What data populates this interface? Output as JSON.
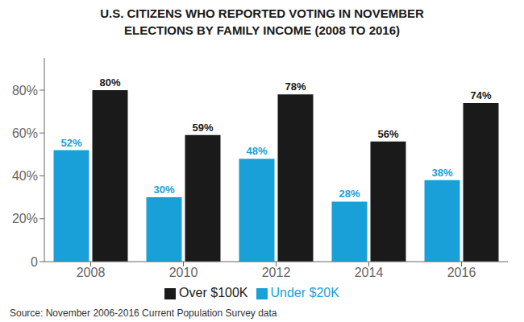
{
  "chart_data": {
    "type": "bar",
    "title": "U.S. CITIZENS WHO REPORTED VOTING IN NOVEMBER\nELECTIONS BY FAMILY INCOME (2008 TO 2016)",
    "categories": [
      "2008",
      "2010",
      "2012",
      "2014",
      "2016"
    ],
    "series": [
      {
        "name": "Under $20K",
        "color": "#1aa0d8",
        "values": [
          52,
          30,
          48,
          28,
          38
        ],
        "value_labels": [
          "52%",
          "30%",
          "48%",
          "28%",
          "38%"
        ]
      },
      {
        "name": "Over $100K",
        "color": "#1a1a1a",
        "values": [
          80,
          59,
          78,
          56,
          74
        ],
        "value_labels": [
          "80%",
          "59%",
          "78%",
          "56%",
          "74%"
        ]
      }
    ],
    "ylim": [
      0,
      95
    ],
    "yticks": [
      0,
      {
        "value": 20,
        "label": "20%"
      },
      {
        "value": 40,
        "label": "40%"
      },
      {
        "value": 60,
        "label": "60%"
      },
      {
        "value": 80,
        "label": "80%"
      }
    ],
    "grid": false,
    "legend": "bottom",
    "data_labels": true,
    "annotations": [
      "Source: November 2006-2016 Current Population Survey data"
    ]
  }
}
